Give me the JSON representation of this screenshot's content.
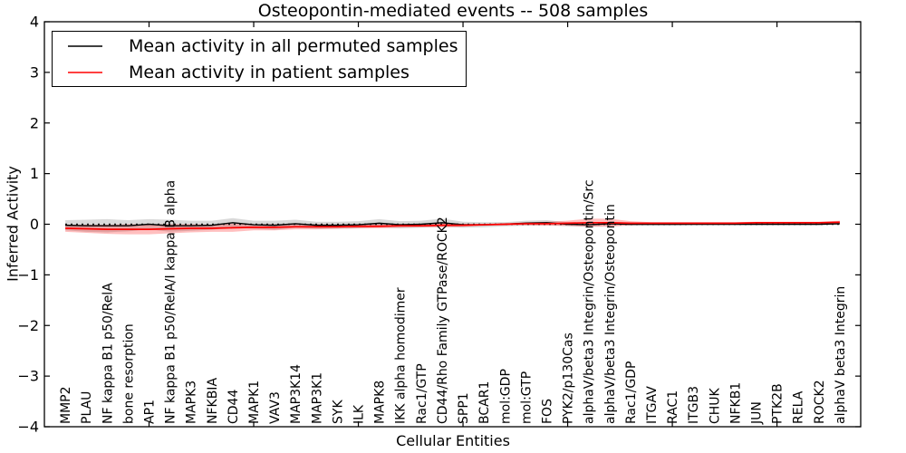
{
  "chart_data": {
    "type": "line",
    "title": "Osteopontin-mediated events -- 508 samples",
    "xlabel": "Cellular Entities",
    "ylabel": "Inferred Activity",
    "ylim": [
      -4,
      4
    ],
    "ytick_values": [
      4,
      3,
      2,
      1,
      0,
      -1,
      -2,
      -3,
      -4
    ],
    "ytick_labels": [
      "4",
      "3",
      "2",
      "1",
      "0",
      "−1",
      "−2",
      "−3",
      "−4"
    ],
    "x_major_tick_every": 5,
    "grid": false,
    "legend_position": "upper-left",
    "zero_line": {
      "style": "dotted",
      "color": "#000000",
      "value": 0
    },
    "categories": [
      "MMP2",
      "PLAU",
      "NF kappa B1 p50/RelA",
      "bone resorption",
      "AP1",
      "NF kappa B1 p50/RelA/I kappa B alpha",
      "MAPK3",
      "NFKBIA",
      "CD44",
      "MAPK1",
      "VAV3",
      "MAP3K14",
      "MAP3K1",
      "SYK",
      "ILK",
      "MAPK8",
      "IKK alpha homodimer",
      "Rac1/GTP",
      "CD44/Rho Family GTPase/ROCK2",
      "SPP1",
      "BCAR1",
      "mol:GDP",
      "mol:GTP",
      "FOS",
      "PYK2/p130Cas",
      "alphaV/beta3 Integrin/Osteopontin/Src",
      "alphaV/beta3 Integrin/Osteopontin",
      "Rac1/GDP",
      "ITGAV",
      "RAC1",
      "ITGB3",
      "CHUK",
      "NFKB1",
      "JUN",
      "PTK2B",
      "RELA",
      "ROCK2",
      "alphaV beta3 Integrin"
    ],
    "series": [
      {
        "name": "Mean activity in all permuted samples",
        "color": "#000000",
        "band_color": "#000000",
        "band_opacity": 0.15,
        "values": [
          -0.02,
          -0.03,
          -0.03,
          -0.03,
          0.0,
          -0.03,
          -0.03,
          -0.02,
          0.03,
          -0.01,
          -0.02,
          0.01,
          -0.02,
          -0.02,
          -0.01,
          0.02,
          -0.01,
          0.0,
          0.03,
          -0.01,
          -0.01,
          0.0,
          0.02,
          0.03,
          0.0,
          -0.01,
          0.01,
          0.0,
          0.0,
          0.0,
          0.0,
          0.0,
          0.0,
          0.0,
          0.0,
          0.0,
          0.0,
          0.01
        ],
        "band": [
          0.1,
          0.12,
          0.13,
          0.11,
          0.1,
          0.12,
          0.1,
          0.09,
          0.09,
          0.08,
          0.09,
          0.08,
          0.07,
          0.07,
          0.07,
          0.08,
          0.07,
          0.07,
          0.08,
          0.06,
          0.05,
          0.04,
          0.05,
          0.05,
          0.04,
          0.04,
          0.04,
          0.03,
          0.03,
          0.03,
          0.02,
          0.02,
          0.02,
          0.02,
          0.02,
          0.02,
          0.02,
          0.02
        ]
      },
      {
        "name": "Mean activity in patient samples",
        "color": "#ff0000",
        "band_color": "#ff0000",
        "band_opacity": 0.25,
        "values": [
          -0.08,
          -0.09,
          -0.1,
          -0.1,
          -0.1,
          -0.09,
          -0.08,
          -0.08,
          -0.07,
          -0.06,
          -0.06,
          -0.05,
          -0.05,
          -0.05,
          -0.04,
          -0.04,
          -0.03,
          -0.03,
          -0.02,
          -0.02,
          -0.01,
          0.0,
          0.01,
          0.01,
          0.02,
          0.03,
          0.03,
          0.02,
          0.02,
          0.02,
          0.02,
          0.02,
          0.02,
          0.03,
          0.03,
          0.03,
          0.03,
          0.04
        ],
        "band": [
          0.07,
          0.08,
          0.09,
          0.1,
          0.1,
          0.09,
          0.08,
          0.07,
          0.08,
          0.06,
          0.06,
          0.05,
          0.05,
          0.04,
          0.04,
          0.04,
          0.04,
          0.03,
          0.04,
          0.03,
          0.02,
          0.02,
          0.03,
          0.04,
          0.05,
          0.08,
          0.08,
          0.04,
          0.02,
          0.02,
          0.02,
          0.02,
          0.02,
          0.02,
          0.02,
          0.02,
          0.02,
          0.03
        ]
      }
    ]
  }
}
